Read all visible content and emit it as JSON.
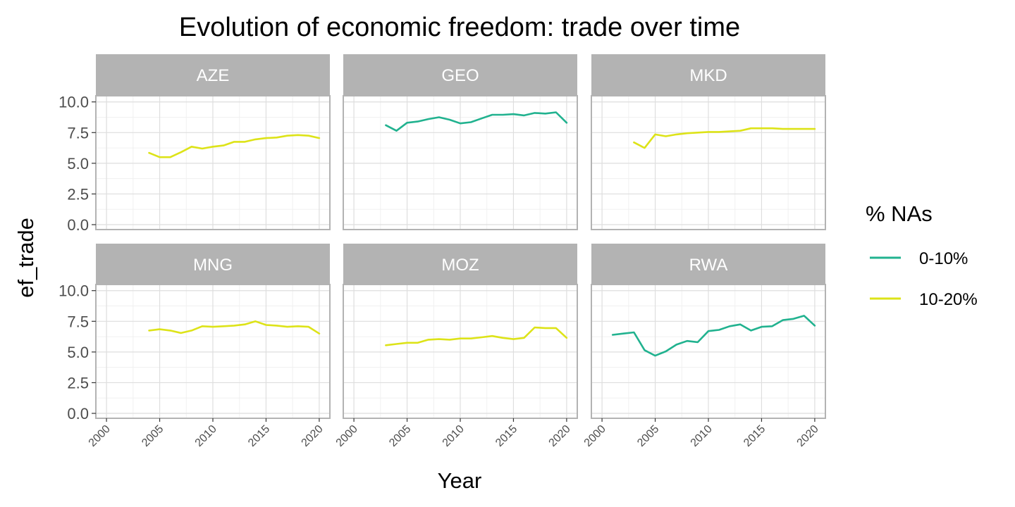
{
  "chart_data": {
    "type": "line",
    "title": "Evolution of economic freedom: trade over time",
    "xlabel": "Year",
    "ylabel": "ef_trade",
    "xlim": [
      1999,
      2021
    ],
    "ylim": [
      -0.4,
      10.5
    ],
    "x_ticks": [
      "2000",
      "2005",
      "2010",
      "2015",
      "2020"
    ],
    "y_ticks": [
      "0.0",
      "2.5",
      "5.0",
      "7.5",
      "10.0"
    ],
    "grid": true,
    "facet_layout": "2 rows x 3 columns",
    "legend": {
      "title": "% NAs",
      "placement": "right",
      "entries": [
        {
          "label": "0-10%",
          "color": "#21b28f"
        },
        {
          "label": "10-20%",
          "color": "#dde318"
        }
      ]
    },
    "panels": [
      {
        "label": "AZE",
        "na_group": "10-20%",
        "x": [
          2004,
          2005,
          2006,
          2007,
          2008,
          2009,
          2010,
          2011,
          2012,
          2013,
          2014,
          2015,
          2016,
          2017,
          2018,
          2019,
          2020
        ],
        "y": [
          5.85,
          5.5,
          5.5,
          5.9,
          6.35,
          6.2,
          6.35,
          6.45,
          6.75,
          6.75,
          6.95,
          7.05,
          7.1,
          7.25,
          7.3,
          7.25,
          7.05
        ]
      },
      {
        "label": "GEO",
        "na_group": "0-10%",
        "x": [
          2003,
          2004,
          2005,
          2006,
          2007,
          2008,
          2009,
          2010,
          2011,
          2012,
          2013,
          2014,
          2015,
          2016,
          2017,
          2018,
          2019,
          2020
        ],
        "y": [
          8.1,
          7.65,
          8.3,
          8.4,
          8.6,
          8.75,
          8.55,
          8.25,
          8.35,
          8.65,
          8.95,
          8.95,
          9.0,
          8.9,
          9.1,
          9.05,
          9.15,
          8.3
        ]
      },
      {
        "label": "MKD",
        "na_group": "10-20%",
        "x": [
          2003,
          2004,
          2005,
          2006,
          2007,
          2008,
          2009,
          2010,
          2011,
          2012,
          2013,
          2014,
          2015,
          2016,
          2017,
          2018,
          2019,
          2020
        ],
        "y": [
          6.7,
          6.25,
          7.35,
          7.2,
          7.35,
          7.45,
          7.5,
          7.55,
          7.55,
          7.6,
          7.65,
          7.85,
          7.85,
          7.85,
          7.8,
          7.8,
          7.8,
          7.8
        ]
      },
      {
        "label": "MNG",
        "na_group": "10-20%",
        "x": [
          2004,
          2005,
          2006,
          2007,
          2008,
          2009,
          2010,
          2011,
          2012,
          2013,
          2014,
          2015,
          2016,
          2017,
          2018,
          2019,
          2020
        ],
        "y": [
          6.75,
          6.85,
          6.75,
          6.55,
          6.75,
          7.1,
          7.05,
          7.1,
          7.15,
          7.25,
          7.5,
          7.2,
          7.15,
          7.05,
          7.1,
          7.05,
          6.5
        ]
      },
      {
        "label": "MOZ",
        "na_group": "10-20%",
        "x": [
          2003,
          2004,
          2005,
          2006,
          2007,
          2008,
          2009,
          2010,
          2011,
          2012,
          2013,
          2014,
          2015,
          2016,
          2017,
          2018,
          2019,
          2020
        ],
        "y": [
          5.55,
          5.65,
          5.75,
          5.75,
          6.0,
          6.05,
          6.0,
          6.1,
          6.1,
          6.2,
          6.3,
          6.15,
          6.05,
          6.15,
          7.0,
          6.95,
          6.95,
          6.15
        ]
      },
      {
        "label": "RWA",
        "na_group": "0-10%",
        "x": [
          2001,
          2002,
          2003,
          2004,
          2005,
          2006,
          2007,
          2008,
          2009,
          2010,
          2011,
          2012,
          2013,
          2014,
          2015,
          2016,
          2017,
          2018,
          2019,
          2020
        ],
        "y": [
          6.4,
          6.5,
          6.6,
          5.15,
          4.7,
          5.05,
          5.6,
          5.9,
          5.8,
          6.7,
          6.8,
          7.1,
          7.25,
          6.75,
          7.05,
          7.1,
          7.6,
          7.7,
          7.95,
          7.15
        ]
      }
    ]
  }
}
